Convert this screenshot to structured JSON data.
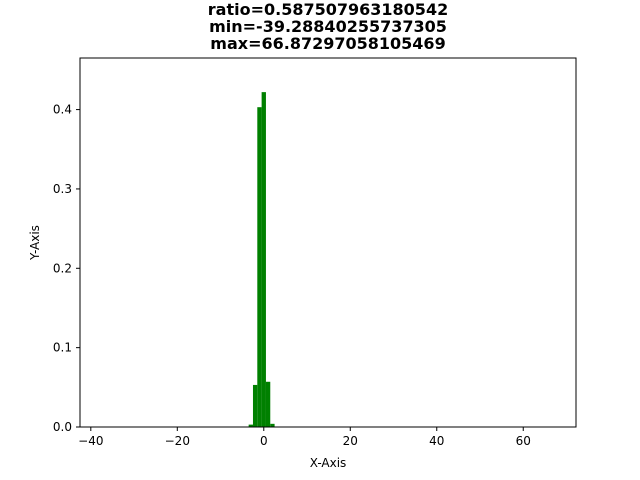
{
  "chart_data": {
    "type": "bar",
    "title_lines": [
      "ratio=0.587507963180542",
      "min=-39.28840255737305",
      "max=66.87297058105469"
    ],
    "xlabel": "X-Axis",
    "ylabel": "Y-Axis",
    "xlim": [
      -42.5,
      72.2
    ],
    "ylim": [
      0,
      0.465
    ],
    "xticks": [
      -40,
      -20,
      0,
      20,
      40,
      60
    ],
    "xtick_labels": [
      "−40",
      "−20",
      "0",
      "20",
      "40",
      "60"
    ],
    "yticks": [
      0.0,
      0.1,
      0.2,
      0.3,
      0.4
    ],
    "ytick_labels": [
      "0.0",
      "0.1",
      "0.2",
      "0.3",
      "0.4"
    ],
    "bar_color": "#008000",
    "bin_width": 1.0,
    "bins": [
      {
        "x": -3.0,
        "value": 0.003
      },
      {
        "x": -2.0,
        "value": 0.053
      },
      {
        "x": -1.0,
        "value": 0.403
      },
      {
        "x": 0.0,
        "value": 0.422
      },
      {
        "x": 1.0,
        "value": 0.057
      },
      {
        "x": 2.0,
        "value": 0.004
      }
    ],
    "grid": false,
    "legend": "none"
  }
}
